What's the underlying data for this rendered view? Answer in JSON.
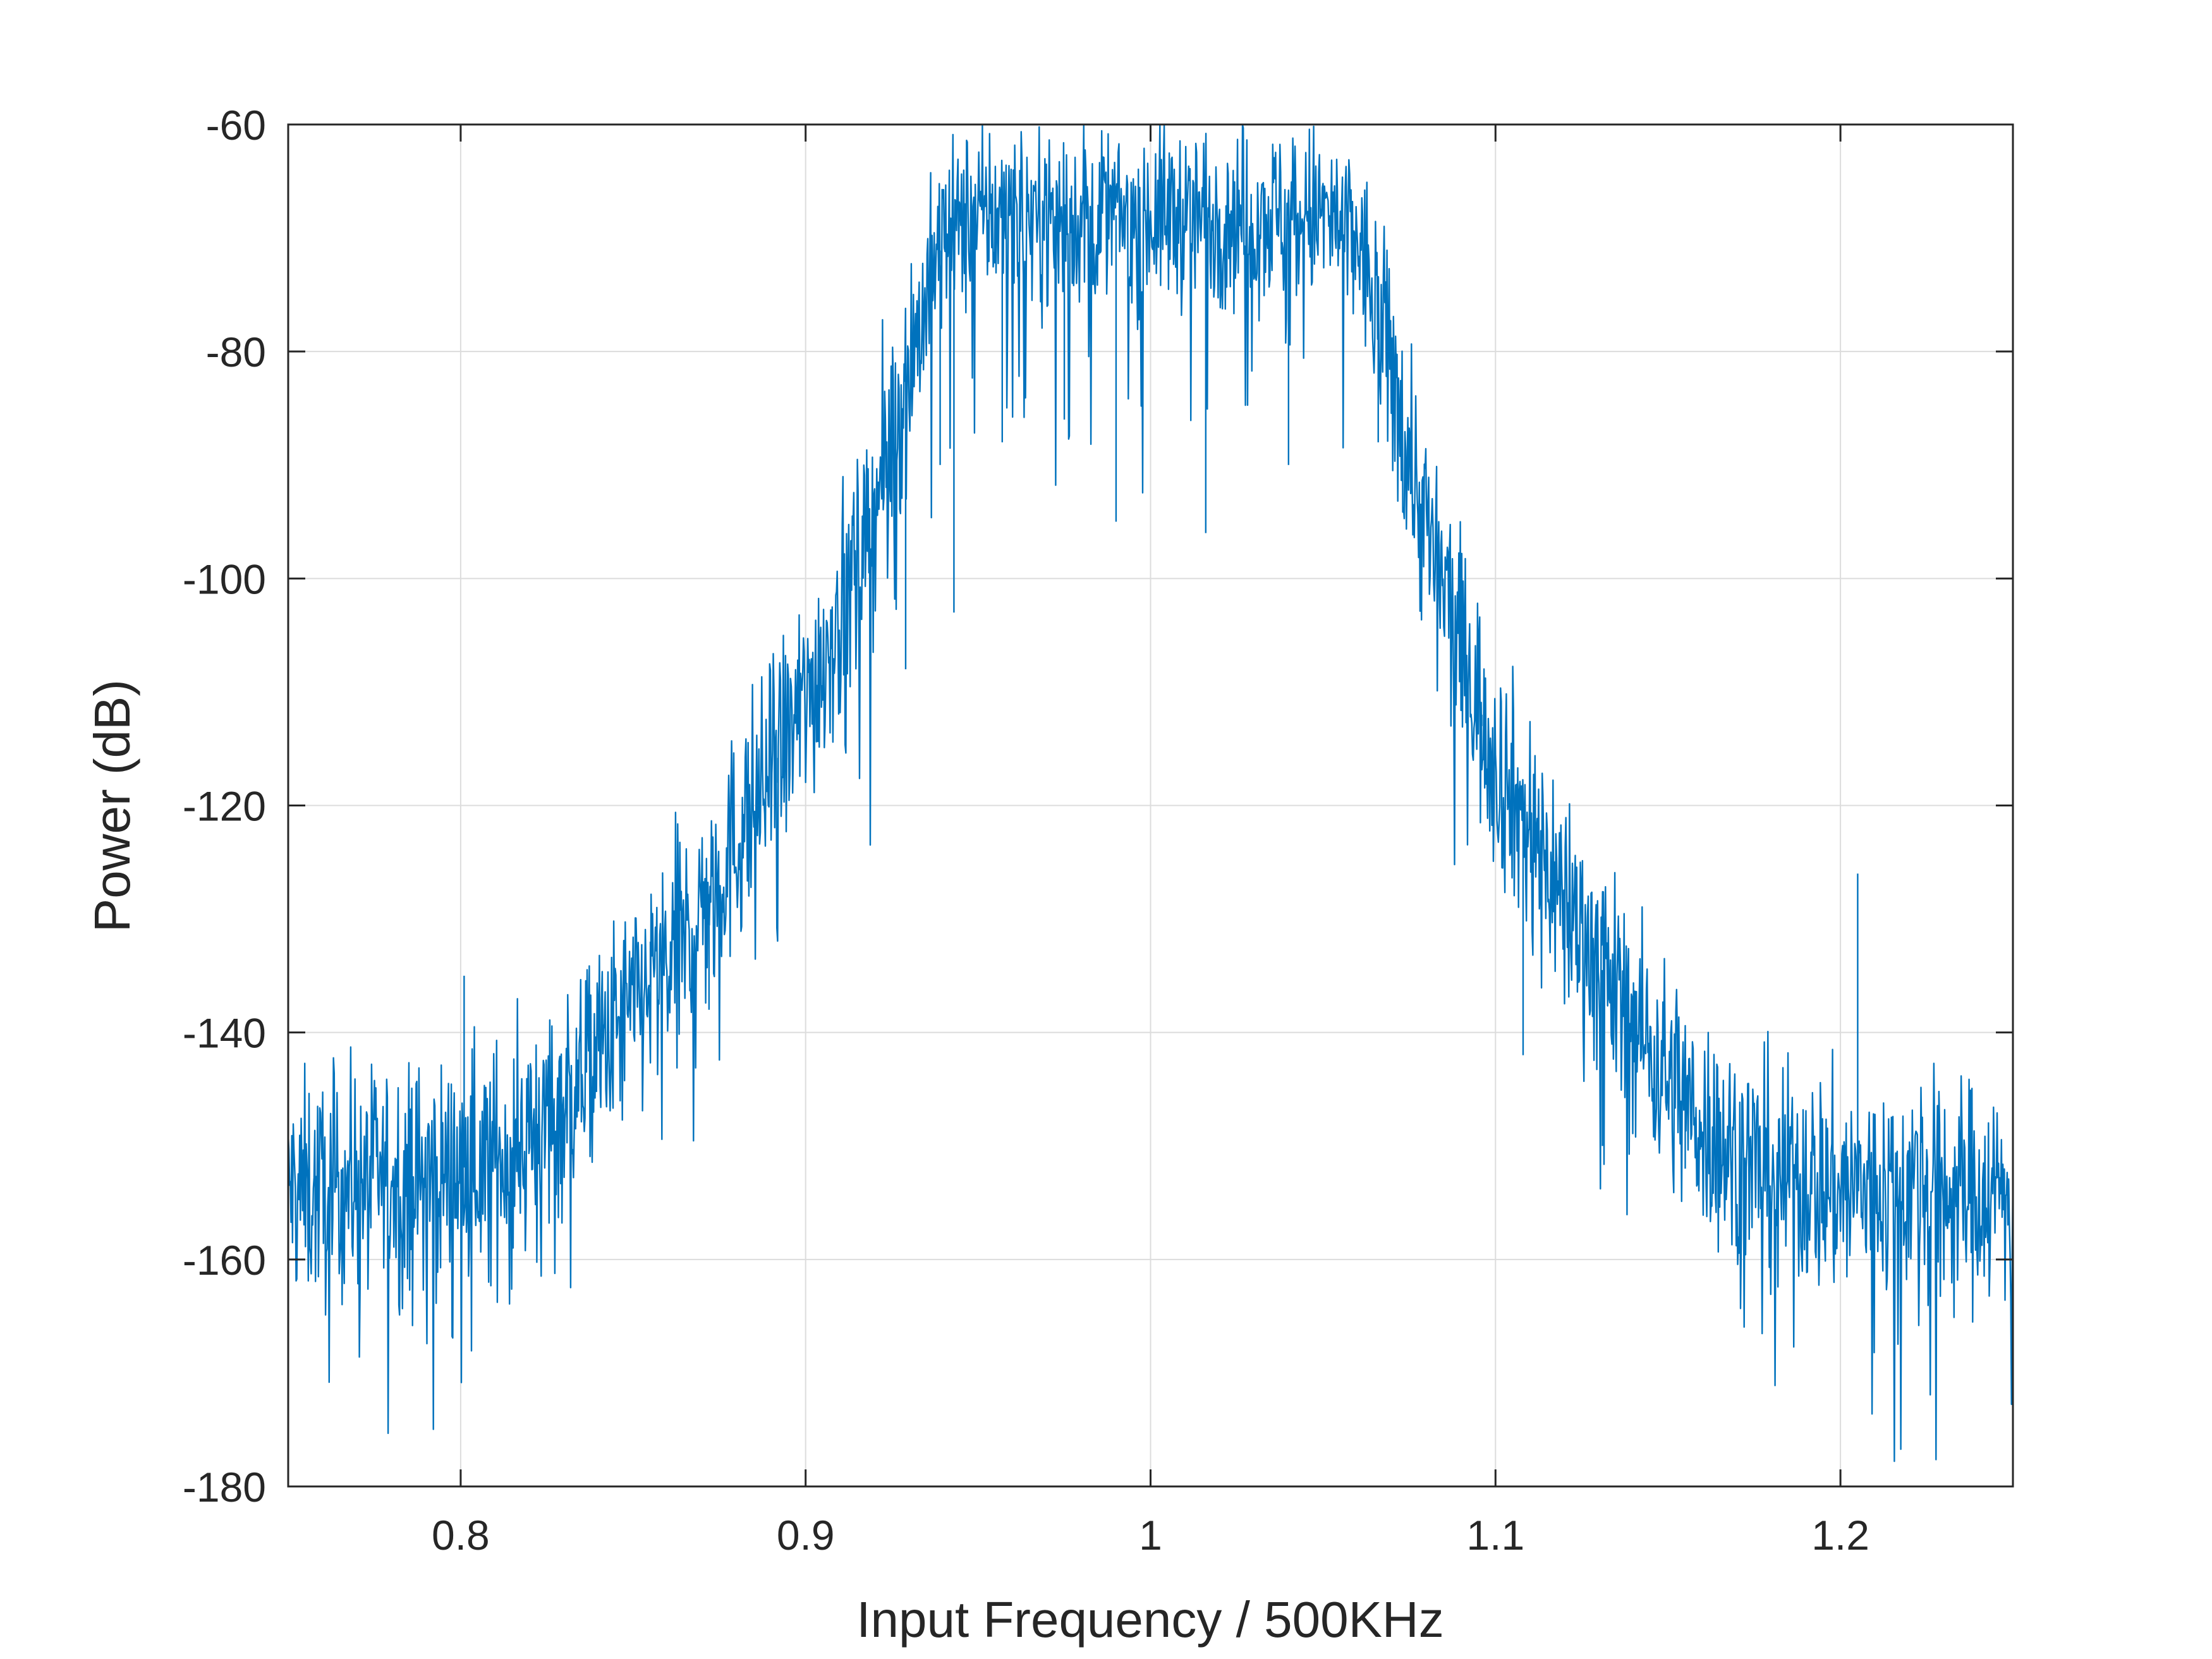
{
  "chart_data": {
    "type": "line",
    "title": "",
    "xlabel": "Input Frequency / 500KHz",
    "ylabel": "Power (dB)",
    "xlim": [
      0.75,
      1.25
    ],
    "ylim": [
      -180,
      -60
    ],
    "xticks": [
      0.8,
      0.9,
      1.0,
      1.1,
      1.2
    ],
    "xtick_labels": [
      "0.8",
      "0.9",
      "1",
      "1.1",
      "1.2"
    ],
    "yticks": [
      -180,
      -160,
      -140,
      -120,
      -100,
      -80,
      -60
    ],
    "ytick_labels": [
      "-180",
      "-160",
      "-140",
      "-120",
      "-100",
      "-80",
      "-60"
    ],
    "grid": true,
    "legend": "none",
    "series_color": "#0072BD",
    "series": [
      {
        "x": [
          0.75,
          0.76,
          0.77,
          0.78,
          0.79,
          0.8,
          0.81,
          0.82,
          0.83,
          0.84,
          0.85,
          0.86,
          0.87,
          0.88,
          0.89,
          0.9,
          0.91,
          0.92,
          0.93,
          0.94,
          0.95,
          0.96,
          0.97,
          0.98,
          0.99,
          1.0,
          1.01,
          1.02,
          1.03,
          1.04,
          1.05,
          1.06,
          1.07,
          1.08,
          1.09,
          1.1,
          1.11,
          1.12,
          1.13,
          1.14,
          1.15,
          1.16,
          1.17,
          1.18,
          1.19,
          1.2,
          1.21,
          1.22,
          1.23,
          1.24,
          1.25
        ],
        "y": [
          -154,
          -154,
          -153,
          -153,
          -153,
          -152,
          -151,
          -149,
          -146,
          -142,
          -138,
          -134,
          -129,
          -123,
          -117,
          -111,
          -103,
          -94,
          -81,
          -70,
          -68,
          -68,
          -68,
          -68,
          -68,
          -68,
          -68,
          -68,
          -68,
          -68,
          -68,
          -70,
          -82,
          -96,
          -106,
          -116,
          -122,
          -128,
          -134,
          -139,
          -144,
          -148,
          -151,
          -152,
          -153,
          -154,
          -154,
          -153,
          -154,
          -154,
          -154
        ],
        "spread": [
          5,
          5,
          5,
          5,
          5,
          5,
          5,
          5,
          5,
          5,
          5,
          5,
          5,
          5,
          5,
          5,
          5,
          5,
          5,
          4,
          4,
          4,
          4,
          4,
          4,
          4,
          4,
          4,
          4,
          4,
          4,
          4,
          5,
          5,
          5,
          5,
          5,
          5,
          5,
          5,
          5,
          5,
          5,
          5,
          5,
          5,
          5,
          5,
          5,
          5,
          5
        ],
        "spikes": [
          [
            0.801,
            -135
          ],
          [
            0.855,
            -132
          ],
          [
            0.872,
            -138
          ],
          [
            0.892,
            -118
          ],
          [
            0.897,
            -112
          ],
          [
            0.929,
            -108
          ],
          [
            0.939,
            -90
          ],
          [
            0.943,
            -103
          ],
          [
            0.957,
            -88
          ],
          [
            0.975,
            -86
          ],
          [
            0.99,
            -95
          ],
          [
            1.016,
            -96
          ],
          [
            1.04,
            -90
          ],
          [
            1.066,
            -88
          ],
          [
            1.096,
            -113
          ],
          [
            1.108,
            -142
          ],
          [
            1.131,
            -150
          ],
          [
            1.155,
            -152
          ],
          [
            1.205,
            -126
          ],
          [
            1.225,
            -151
          ]
        ]
      }
    ]
  }
}
